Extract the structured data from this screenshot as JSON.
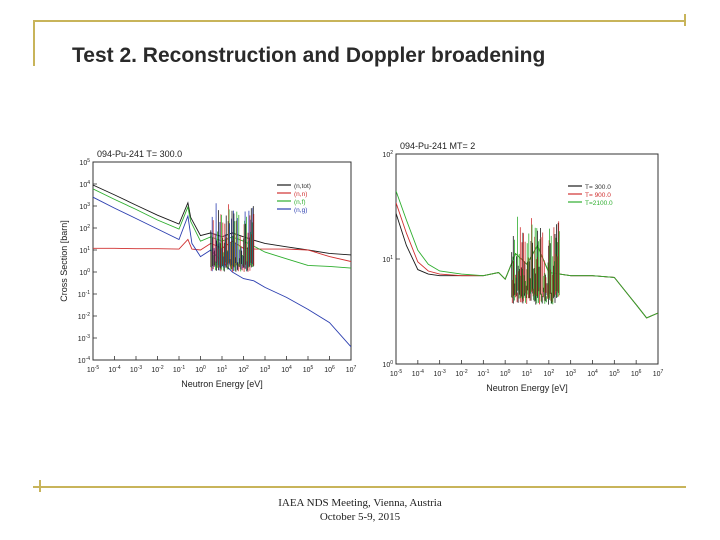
{
  "slide": {
    "title": "Test 2. Reconstruction and Doppler broadening",
    "footer_line1": "IAEA NDS Meeting, Vienna, Austria",
    "footer_line2": "October 5-9, 2015",
    "accent_color": "#c8b45a"
  },
  "chart_data": [
    {
      "type": "line",
      "title": "094-Pu-241  T= 300.0",
      "xlabel": "Neutron Energy [eV]",
      "ylabel": "Cross Section [barn]",
      "x_scale": "log",
      "y_scale": "log",
      "xlim": [
        1e-05,
        10000000.0
      ],
      "ylim": [
        0.0001,
        100000.0
      ],
      "x_tick_labels": [
        "10-5",
        "10-4",
        "10-3",
        "10-2",
        "10-1",
        "100",
        "101",
        "102",
        "103",
        "104",
        "105",
        "106",
        "107"
      ],
      "y_tick_labels": [
        "105",
        "104",
        "103",
        "102",
        "101",
        "100",
        "10-1",
        "10-2",
        "10-3",
        "10-4"
      ],
      "legend_placement": "top-right",
      "series": [
        {
          "name": "(n,tot)",
          "color": "#1a1a1a",
          "x": [
            1e-05,
            0.0001,
            0.001,
            0.01,
            0.1,
            0.26,
            0.35,
            1,
            3,
            10,
            30,
            100,
            300,
            1000,
            10000.0,
            100000.0,
            1000000.0,
            10000000.0
          ],
          "y": [
            9000,
            3200,
            1100,
            380,
            150,
            1400,
            300,
            45,
            60,
            40,
            60,
            40,
            28,
            20,
            14,
            10,
            7,
            6
          ]
        },
        {
          "name": "(n,n)",
          "color": "#d03030",
          "x": [
            1e-05,
            0.0001,
            0.001,
            0.01,
            0.1,
            0.26,
            0.4,
            1,
            3,
            10,
            30,
            100,
            300,
            1000,
            10000.0,
            100000.0,
            1000000.0,
            10000000.0
          ],
          "y": [
            12,
            12,
            11.5,
            11.5,
            11,
            30,
            11,
            10,
            20,
            12,
            25,
            12,
            11,
            11,
            11,
            10,
            5,
            3
          ]
        },
        {
          "name": "(n,f)",
          "color": "#2eae2e",
          "x": [
            1e-05,
            0.0001,
            0.001,
            0.01,
            0.1,
            0.26,
            0.35,
            1,
            3,
            10,
            30,
            100,
            300,
            1000,
            10000.0,
            100000.0,
            1000000.0,
            10000000.0
          ],
          "y": [
            6000,
            2000,
            700,
            230,
            90,
            900,
            200,
            25,
            40,
            25,
            40,
            25,
            15,
            8,
            4,
            2,
            1.8,
            1.5
          ]
        },
        {
          "name": "(n,g)",
          "color": "#2c3fb0",
          "x": [
            1e-05,
            0.0001,
            0.001,
            0.01,
            0.1,
            0.26,
            0.4,
            1,
            3,
            10,
            30,
            100,
            300,
            1000,
            10000.0,
            100000.0,
            1000000.0,
            10000000.0
          ],
          "y": [
            2500,
            800,
            270,
            90,
            30,
            350,
            20,
            5,
            10,
            3,
            1,
            0.5,
            0.4,
            0.2,
            0.07,
            0.02,
            0.005,
            0.0004
          ]
        }
      ]
    },
    {
      "type": "line",
      "title": "094-Pu-241   MT=  2",
      "xlabel": "Neutron Energy [eV]",
      "ylabel": "",
      "x_scale": "log",
      "y_scale": "log",
      "xlim": [
        1e-05,
        10000000.0
      ],
      "ylim": [
        1,
        300
      ],
      "x_tick_labels": [
        "10-5",
        "10-4",
        "10-3",
        "10-2",
        "10-1",
        "100",
        "101",
        "102",
        "103",
        "104",
        "105",
        "106",
        "107"
      ],
      "y_tick_labels": [
        "102",
        "101",
        "100"
      ],
      "legend_placement": "top-right",
      "series": [
        {
          "name": "T=  300.0",
          "color": "#1a1a1a",
          "x": [
            1e-05,
            3e-05,
            0.0001,
            0.0003,
            0.001,
            0.01,
            0.1,
            0.5,
            1,
            3,
            10,
            30,
            100,
            1000,
            10000.0,
            100000.0,
            1000000.0,
            3000000.0,
            10000000.0
          ],
          "y": [
            60,
            25,
            13,
            11.5,
            11,
            11,
            11,
            12,
            10,
            20,
            15,
            25,
            12,
            11,
            11,
            10.5,
            5,
            3.5,
            4
          ]
        },
        {
          "name": "T=  900.0",
          "color": "#d03030",
          "x": [
            1e-05,
            3e-05,
            0.0001,
            0.0003,
            0.001,
            0.01,
            0.1,
            0.5,
            1,
            3,
            10,
            30,
            100,
            1000,
            10000.0,
            100000.0,
            1000000.0,
            3000000.0,
            10000000.0
          ],
          "y": [
            80,
            35,
            16,
            12.5,
            11.5,
            11,
            11,
            12,
            10,
            20,
            15,
            25,
            12,
            11,
            11,
            10.5,
            5,
            3.5,
            4
          ]
        },
        {
          "name": "T=2100.0",
          "color": "#2eae2e",
          "x": [
            1e-05,
            3e-05,
            0.0001,
            0.0003,
            0.001,
            0.01,
            0.1,
            0.5,
            1,
            3,
            10,
            30,
            100,
            1000,
            10000.0,
            100000.0,
            1000000.0,
            3000000.0,
            10000000.0
          ],
          "y": [
            110,
            50,
            22,
            15,
            12.5,
            11.5,
            11,
            12,
            10,
            20,
            15,
            25,
            12,
            11,
            11,
            10.5,
            5,
            3.5,
            4
          ]
        }
      ]
    }
  ]
}
